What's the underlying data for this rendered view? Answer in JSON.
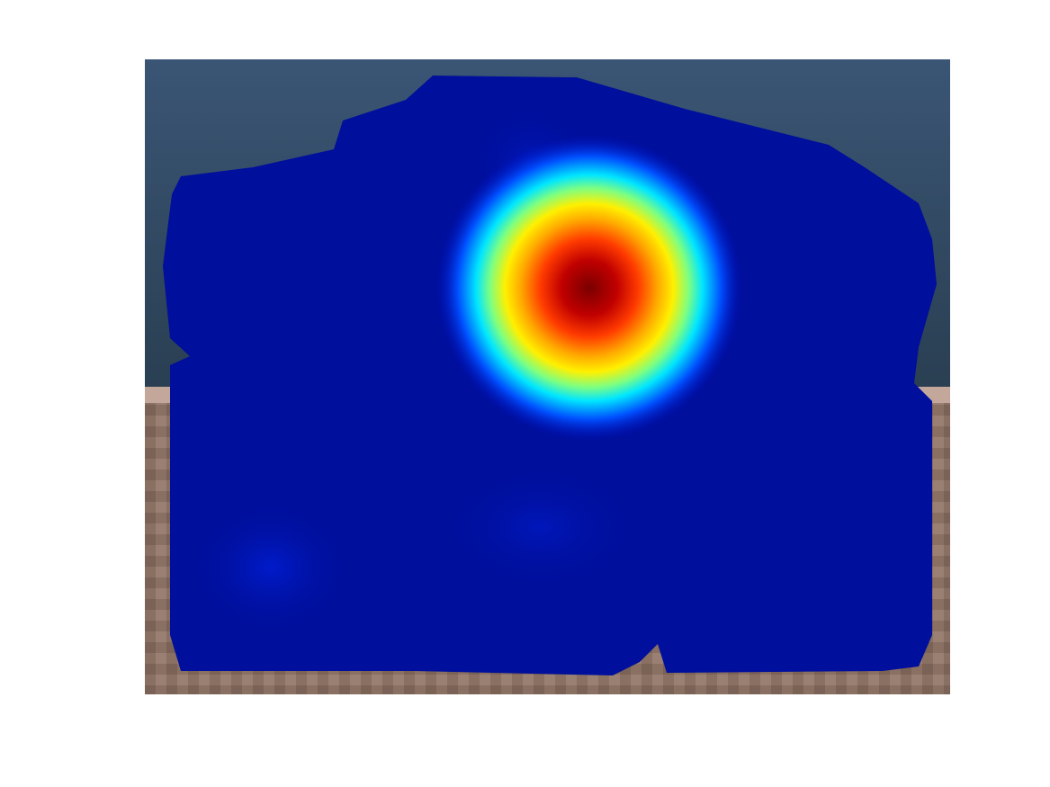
{
  "figure": {
    "background_color": "#ffffff",
    "description_kind": "heatmap-overlay-on-photo",
    "colormap": "jet",
    "colors": {
      "sky_top": "#3a5575",
      "sky_bottom": "#2a3f52",
      "ground": "#8a7062",
      "ground_edge": "#c2a79a",
      "overlay_base": "#000f9c",
      "hotspot_core": "#7a0000",
      "hotspot_mid": "#ff3b00",
      "hotspot_yellow": "#fff000",
      "hotspot_cyan": "#00e6ff"
    },
    "hotspot_level": 1.0,
    "secondary_glow_level": 0.25
  }
}
